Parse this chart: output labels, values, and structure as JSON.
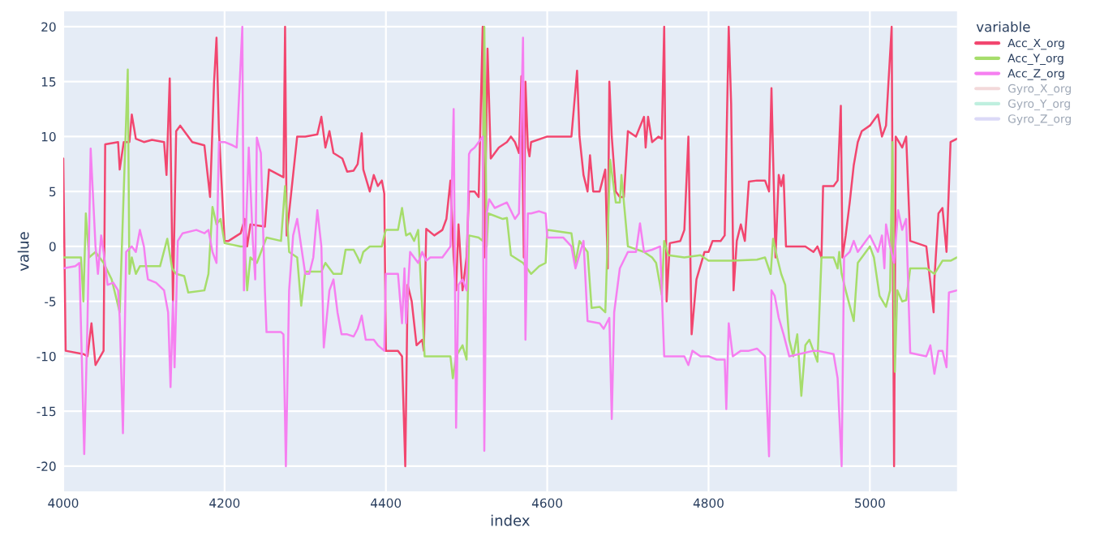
{
  "chart_data": {
    "type": "line",
    "xlabel": "index",
    "ylabel": "value",
    "legend_title": "variable",
    "legend": "top right",
    "grid": true,
    "xlim": [
      4000,
      5108
    ],
    "ylim": [
      -22.3,
      21.4
    ],
    "xticks": [
      4000,
      4200,
      4400,
      4600,
      4800,
      5000
    ],
    "yticks": [
      -20,
      -15,
      -10,
      -5,
      0,
      5,
      10,
      15,
      20
    ],
    "series": [
      {
        "name": "Acc_X_org",
        "color": "#f2466f",
        "x": [
          4000,
          4003,
          4025,
          4030,
          4035,
          4040,
          4050,
          4052,
          4068,
          4070,
          4075,
          4082,
          4085,
          4090,
          4100,
          4110,
          4125,
          4128,
          4132,
          4136,
          4140,
          4145,
          4160,
          4175,
          4182,
          4187,
          4190,
          4193,
          4200,
          4205,
          4220,
          4225,
          4228,
          4232,
          4250,
          4255,
          4273,
          4275,
          4277,
          4290,
          4300,
          4315,
          4320,
          4325,
          4330,
          4335,
          4346,
          4352,
          4360,
          4365,
          4370,
          4372,
          4380,
          4385,
          4390,
          4395,
          4398,
          4400,
          4415,
          4420,
          4424,
          4427,
          4432,
          4438,
          4445,
          4447,
          4450,
          4460,
          4470,
          4475,
          4480,
          4484,
          4487,
          4490,
          4495,
          4500,
          4503,
          4510,
          4515,
          4520,
          4522,
          4526,
          4530,
          4535,
          4540,
          4550,
          4555,
          4560,
          4565,
          4568,
          4571,
          4573,
          4576,
          4578,
          4580,
          4600,
          4630,
          4637,
          4640,
          4645,
          4650,
          4653,
          4657,
          4665,
          4672,
          4675,
          4677,
          4680,
          4685,
          4690,
          4695,
          4700,
          4710,
          4720,
          4722,
          4725,
          4730,
          4738,
          4742,
          4745,
          4748,
          4752,
          4765,
          4770,
          4775,
          4779,
          4785,
          4795,
          4800,
          4805,
          4815,
          4820,
          4825,
          4828,
          4831,
          4835,
          4840,
          4845,
          4850,
          4860,
          4870,
          4875,
          4878,
          4883,
          4887,
          4890,
          4893,
          4896,
          4920,
          4930,
          4935,
          4940,
          4942,
          4955,
          4960,
          4964,
          4966,
          4970,
          4975,
          4980,
          4985,
          4990,
          5000,
          5010,
          5015,
          5020,
          5027,
          5030,
          5032,
          5040,
          5045,
          5050,
          5070,
          5079,
          5080,
          5085,
          5090,
          5095,
          5100,
          5108
        ],
        "values": [
          8,
          -9.5,
          -9.8,
          -10,
          -7,
          -10.8,
          -9.5,
          9.3,
          9.5,
          7,
          9.5,
          9.5,
          12,
          9.8,
          9.5,
          9.7,
          9.5,
          6.5,
          15.3,
          -5,
          10.5,
          11,
          9.5,
          9.2,
          4.5,
          15,
          19,
          10.5,
          0.5,
          0.5,
          1.2,
          2.5,
          0,
          2,
          1.8,
          7,
          6.3,
          20,
          1,
          10,
          10,
          10.2,
          11.8,
          9,
          10.5,
          8.5,
          8,
          6.8,
          6.9,
          7.5,
          10.3,
          7,
          5,
          6.5,
          5.5,
          6,
          4.8,
          -9.5,
          -9.5,
          -10,
          -20,
          -3.5,
          -5,
          -9,
          -8.5,
          -9.5,
          1.6,
          1,
          1.5,
          2.5,
          6,
          -1,
          -4,
          2,
          -4,
          -1,
          5,
          5,
          4.5,
          20,
          -1,
          18,
          8,
          8.5,
          9,
          9.5,
          10,
          9.5,
          8.5,
          15.5,
          -1,
          15,
          9,
          8.2,
          9.5,
          10,
          10,
          16,
          10,
          6.5,
          5,
          8.3,
          5,
          5,
          7,
          -2,
          15,
          10,
          5,
          4.5,
          4.5,
          10.5,
          10,
          11.8,
          9,
          11.8,
          9.5,
          10,
          9.8,
          20,
          -5,
          0.3,
          0.5,
          1.5,
          10,
          -8,
          -3,
          -0.5,
          -0.5,
          0.5,
          0.5,
          1,
          20,
          13,
          -4,
          0.5,
          2,
          0.5,
          5.9,
          6,
          6,
          5,
          14.4,
          -1,
          6.5,
          5.5,
          6.5,
          0,
          0,
          -0.5,
          0,
          -1,
          5.5,
          5.5,
          6,
          12.8,
          -1,
          1,
          4,
          7.4,
          9.5,
          10.5,
          11,
          12,
          10,
          11,
          20,
          -20,
          10,
          9,
          10,
          0.5,
          0,
          -6,
          -3,
          3,
          3.5,
          -0.5,
          9.5,
          9.8
        ]
      },
      {
        "name": "Acc_Y_org",
        "color": "#a6dd6b",
        "x": [
          4000,
          4015,
          4022,
          4025,
          4028,
          4032,
          4040,
          4050,
          4060,
          4070,
          4080,
          4082,
          4085,
          4090,
          4095,
          4120,
          4129,
          4135,
          4140,
          4150,
          4155,
          4175,
          4180,
          4185,
          4190,
          4195,
          4200,
          4220,
          4225,
          4228,
          4232,
          4240,
          4252,
          4270,
          4275,
          4280,
          4290,
          4295,
          4300,
          4320,
          4325,
          4335,
          4345,
          4350,
          4360,
          4365,
          4368,
          4372,
          4380,
          4395,
          4398,
          4400,
          4415,
          4420,
          4425,
          4430,
          4435,
          4440,
          4448,
          4460,
          4480,
          4483,
          4487,
          4495,
          4500,
          4503,
          4515,
          4520,
          4522,
          4525,
          4527,
          4545,
          4550,
          4555,
          4570,
          4580,
          4590,
          4598,
          4600,
          4630,
          4635,
          4640,
          4650,
          4655,
          4665,
          4672,
          4678,
          4685,
          4690,
          4692,
          4700,
          4720,
          4730,
          4735,
          4742,
          4745,
          4750,
          4770,
          4790,
          4800,
          4830,
          4860,
          4870,
          4877,
          4880,
          4885,
          4890,
          4895,
          4900,
          4905,
          4910,
          4915,
          4920,
          4925,
          4930,
          4935,
          4940,
          4955,
          4960,
          4962,
          4965,
          4970,
          4975,
          4980,
          4985,
          4995,
          5000,
          5005,
          5012,
          5020,
          5025,
          5028,
          5031,
          5034,
          5040,
          5045,
          5050,
          5070,
          5080,
          5090,
          5100,
          5108
        ],
        "values": [
          -1,
          -1,
          -1,
          -5,
          3,
          -1,
          -0.5,
          -1.5,
          -3,
          -6,
          16.1,
          -2.5,
          -1,
          -2.5,
          -1.8,
          -1.8,
          0.7,
          -2,
          -2.5,
          -2.7,
          -4.2,
          -4,
          -2.5,
          3.6,
          2,
          2.5,
          0.3,
          0,
          0,
          -4,
          -1,
          -1.5,
          0.8,
          0.5,
          5.5,
          -0.5,
          -1,
          -5.4,
          -2.3,
          -2.3,
          -1.5,
          -2.5,
          -2.5,
          -0.3,
          -0.3,
          -1,
          -1.5,
          -0.5,
          0,
          0,
          1,
          1.5,
          1.5,
          3.5,
          1,
          1.2,
          0.5,
          1.5,
          -10,
          -10,
          -10,
          -12,
          -10,
          -9,
          -10.3,
          1,
          0.8,
          0.5,
          20,
          0,
          3,
          2.5,
          2.6,
          -0.8,
          -1.5,
          -2.5,
          -1.8,
          -1.5,
          1.5,
          1.2,
          -1.5,
          0.5,
          -0.5,
          -5.6,
          -5.5,
          -6,
          7.9,
          4,
          4,
          6.5,
          0,
          -0.5,
          -1,
          -1.5,
          -4.4,
          0.5,
          -0.8,
          -1,
          -0.8,
          -1.3,
          -1.3,
          -1.2,
          -1,
          -2.5,
          0.7,
          -1,
          -2.5,
          -3.5,
          -8.5,
          -10,
          -8,
          -13.6,
          -9,
          -8.5,
          -9.5,
          -10.5,
          -1,
          -1,
          -2,
          -0.5,
          -2.5,
          -4,
          -5.4,
          -6.8,
          -1.5,
          -0.5,
          0,
          -1,
          -4.5,
          -5.5,
          -4,
          9.5,
          -11.4,
          -4,
          -5,
          -4.9,
          -2,
          -2,
          -2.5,
          -1.3,
          -1.3,
          -1
        ]
      },
      {
        "name": "Acc_Z_org",
        "color": "#f67ff0",
        "x": [
          4000,
          4015,
          4020,
          4026,
          4030,
          4034,
          4040,
          4043,
          4047,
          4050,
          4055,
          4062,
          4068,
          4070,
          4074,
          4078,
          4085,
          4090,
          4095,
          4100,
          4103,
          4105,
          4115,
          4125,
          4130,
          4133,
          4136,
          4138,
          4142,
          4148,
          4165,
          4175,
          4180,
          4185,
          4190,
          4193,
          4200,
          4210,
          4215,
          4222,
          4224,
          4230,
          4235,
          4238,
          4240,
          4245,
          4250,
          4252,
          4270,
          4273,
          4276,
          4280,
          4285,
          4290,
          4295,
          4300,
          4305,
          4310,
          4315,
          4320,
          4323,
          4330,
          4335,
          4340,
          4345,
          4352,
          4360,
          4365,
          4370,
          4375,
          4385,
          4390,
          4398,
          4400,
          4415,
          4420,
          4423,
          4425,
          4430,
          4440,
          4445,
          4450,
          4455,
          4470,
          4480,
          4484,
          4487,
          4490,
          4495,
          4500,
          4503,
          4505,
          4510,
          4515,
          4520,
          4522,
          4525,
          4528,
          4535,
          4550,
          4560,
          4565,
          4570,
          4573,
          4576,
          4580,
          4590,
          4598,
          4600,
          4620,
          4630,
          4635,
          4645,
          4650,
          4665,
          4670,
          4677,
          4680,
          4683,
          4690,
          4700,
          4710,
          4715,
          4720,
          4730,
          4740,
          4745,
          4760,
          4770,
          4775,
          4780,
          4790,
          4800,
          4810,
          4820,
          4822,
          4825,
          4830,
          4840,
          4850,
          4860,
          4870,
          4875,
          4878,
          4882,
          4887,
          4893,
          4900,
          4930,
          4935,
          4955,
          4960,
          4965,
          4968,
          4975,
          4980,
          4985,
          4990,
          5000,
          5010,
          5015,
          5018,
          5020,
          5025,
          5030,
          5035,
          5040,
          5045,
          5050,
          5070,
          5075,
          5080,
          5085,
          5090,
          5095,
          5098,
          5108
        ],
        "values": [
          -2,
          -1.8,
          -1.5,
          -18.9,
          -7,
          8.9,
          0,
          -2.5,
          1,
          -0.5,
          -3.5,
          -3.3,
          -4,
          -6.5,
          -17,
          -0.5,
          0,
          -0.5,
          1.5,
          0,
          -2,
          -3,
          -3.3,
          -4,
          -6,
          -12.8,
          -5,
          -11,
          0.5,
          1.2,
          1.5,
          1.2,
          1.5,
          -0.5,
          -1.5,
          9.5,
          9.5,
          9.2,
          9,
          20,
          -4,
          9,
          0.5,
          -3,
          9.9,
          8.5,
          -4,
          -7.8,
          -7.8,
          -8,
          -20,
          -4,
          1,
          2.5,
          0,
          -2.5,
          -2.5,
          -1,
          3.3,
          0,
          -9.2,
          -4,
          -3,
          -6,
          -8,
          -8,
          -8.2,
          -7.5,
          -6.3,
          -8.5,
          -8.5,
          -9,
          -9.5,
          -2.5,
          -2.5,
          -7,
          -2,
          -7,
          -0.5,
          -1.5,
          -0.5,
          -1.3,
          -1,
          -1,
          0,
          12.5,
          -16.5,
          -3.5,
          -3,
          -4,
          8.4,
          8.7,
          9,
          9.5,
          10,
          -18.6,
          3,
          4.3,
          3.5,
          4,
          2.5,
          3,
          19,
          -8.5,
          3,
          3,
          3.2,
          3,
          0.8,
          0.8,
          0,
          -2,
          0.5,
          -6.8,
          -7,
          -7.5,
          -6.5,
          -15.7,
          -6,
          -2,
          -0.5,
          -0.5,
          2.1,
          -0.5,
          -0.3,
          0,
          -10,
          -10,
          -10,
          -10.8,
          -9.5,
          -10,
          -10,
          -10.3,
          -10.3,
          -14.8,
          -7,
          -10,
          -9.5,
          -9.5,
          -9.3,
          -10,
          -19.1,
          -4,
          -4.5,
          -6.5,
          -8,
          -10,
          -9.5,
          -9.5,
          -9.8,
          -12,
          -20,
          -1,
          -0.5,
          0.5,
          -0.5,
          0,
          1,
          -0.5,
          1,
          -2,
          2,
          0,
          -1.5,
          3.3,
          1.5,
          2.5,
          -9.7,
          -10,
          -9,
          -11.6,
          -9.5,
          -9.5,
          -11,
          -4.2,
          -4
        ]
      },
      {
        "name": "Gyro_X_org",
        "color": "#e8b3b6"
      },
      {
        "name": "Gyro_Y_org",
        "color": "#7fe0c0"
      },
      {
        "name": "Gyro_Z_org",
        "color": "#b8b3ef"
      }
    ]
  }
}
